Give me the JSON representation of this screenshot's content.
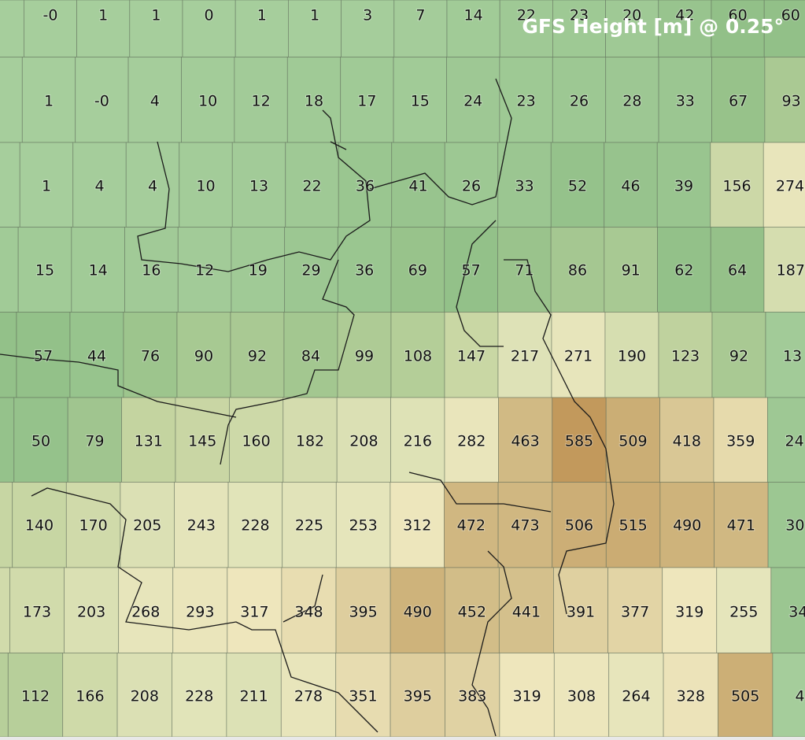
{
  "title": "GFS Height [m] @ 0.25°",
  "grid": {
    "rows": [
      [
        "-0",
        "1",
        "1",
        "0",
        "1",
        "1",
        "3",
        "7",
        "14",
        "22",
        "23",
        "20",
        "42",
        "60",
        "60"
      ],
      [
        "1",
        "-0",
        "4",
        "10",
        "12",
        "18",
        "17",
        "15",
        "24",
        "23",
        "26",
        "28",
        "33",
        "67",
        "93"
      ],
      [
        "1",
        "4",
        "4",
        "10",
        "13",
        "22",
        "36",
        "41",
        "26",
        "33",
        "52",
        "46",
        "39",
        "156",
        "274"
      ],
      [
        "15",
        "14",
        "16",
        "12",
        "19",
        "29",
        "36",
        "69",
        "57",
        "71",
        "86",
        "91",
        "62",
        "64",
        "187"
      ],
      [
        "57",
        "44",
        "76",
        "90",
        "92",
        "84",
        "99",
        "108",
        "147",
        "217",
        "271",
        "190",
        "123",
        "92",
        "13"
      ],
      [
        "50",
        "79",
        "131",
        "145",
        "160",
        "182",
        "208",
        "216",
        "282",
        "463",
        "585",
        "509",
        "418",
        "359",
        "24"
      ],
      [
        "140",
        "170",
        "205",
        "243",
        "228",
        "225",
        "253",
        "312",
        "472",
        "473",
        "506",
        "515",
        "490",
        "471",
        "30"
      ],
      [
        "173",
        "203",
        "268",
        "293",
        "317",
        "348",
        "395",
        "490",
        "452",
        "441",
        "391",
        "377",
        "319",
        "255",
        "34"
      ],
      [
        "112",
        "166",
        "208",
        "228",
        "211",
        "278",
        "351",
        "395",
        "383",
        "319",
        "308",
        "264",
        "328",
        "505",
        "4"
      ]
    ]
  }
}
